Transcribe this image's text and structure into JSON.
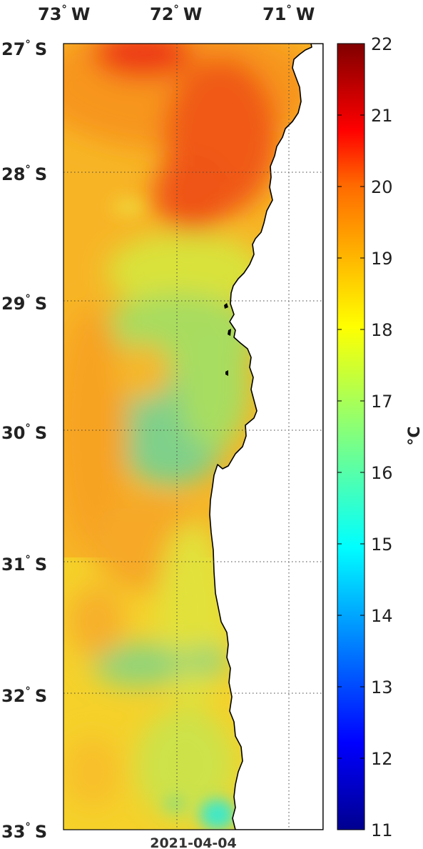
{
  "map": {
    "lon_labels": [
      "73",
      "72",
      "71"
    ],
    "lon_hemisphere": "W",
    "lat_labels": [
      "27",
      "28",
      "29",
      "30",
      "31",
      "32",
      "33"
    ],
    "lat_hemisphere": "S",
    "degree_symbol": "°",
    "date": "2021-04-04",
    "extent": {
      "lon_min": -73.0,
      "lon_max": -70.7,
      "lat_min": -33.0,
      "lat_max": -27.0
    },
    "gridlines": true,
    "gridline_style": "dotted"
  },
  "colorbar": {
    "min": 11,
    "max": 22,
    "tick_labels": [
      "22",
      "21",
      "20",
      "19",
      "18",
      "17",
      "16",
      "15",
      "14",
      "13",
      "12",
      "11"
    ],
    "unit_label": "°C",
    "colormap": "jet",
    "colors": [
      "#00008f",
      "#0000ff",
      "#0080ff",
      "#00ffff",
      "#80ff80",
      "#ffff00",
      "#ff8000",
      "#ff0000",
      "#800000"
    ]
  },
  "colors": {
    "land": "#ffffff",
    "coastline": "#000000",
    "warm_core": "#f04a18",
    "background_sst": "#f9b622"
  }
}
